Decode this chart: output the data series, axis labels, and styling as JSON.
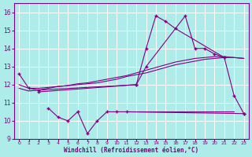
{
  "xlabel": "Windchill (Refroidissement éolien,°C)",
  "background_color": "#aeecea",
  "grid_color": "#ffffff",
  "line_color": "#800080",
  "xlim": [
    -0.5,
    23.5
  ],
  "ylim": [
    9.0,
    16.5
  ],
  "yticks": [
    9,
    10,
    11,
    12,
    13,
    14,
    15,
    16
  ],
  "xticks": [
    0,
    1,
    2,
    3,
    4,
    5,
    6,
    7,
    8,
    9,
    10,
    11,
    12,
    13,
    14,
    15,
    16,
    17,
    18,
    19,
    20,
    21,
    22,
    23
  ],
  "line1_x": [
    0,
    1,
    2,
    12,
    13,
    14,
    15,
    16,
    21
  ],
  "line1_y": [
    12.6,
    11.8,
    11.7,
    12.0,
    14.0,
    15.8,
    15.5,
    15.1,
    13.5
  ],
  "line2_x": [
    2,
    12,
    13,
    17,
    18,
    19,
    20,
    21,
    22,
    23
  ],
  "line2_y": [
    11.6,
    12.0,
    13.0,
    15.8,
    14.0,
    14.0,
    13.7,
    13.5,
    11.4,
    10.4
  ],
  "smooth1_x": [
    0,
    1,
    2,
    3,
    4,
    5,
    6,
    7,
    8,
    9,
    10,
    11,
    12,
    13,
    14,
    15,
    16,
    17,
    18,
    19,
    20,
    21,
    22,
    23
  ],
  "smooth1_y": [
    11.8,
    11.65,
    11.7,
    11.8,
    11.9,
    11.95,
    12.0,
    12.05,
    12.1,
    12.2,
    12.3,
    12.45,
    12.55,
    12.65,
    12.8,
    12.95,
    13.1,
    13.2,
    13.3,
    13.4,
    13.45,
    13.5,
    13.5,
    13.45
  ],
  "smooth2_x": [
    0,
    1,
    2,
    3,
    4,
    5,
    6,
    7,
    8,
    9,
    10,
    11,
    12,
    13,
    14,
    15,
    16,
    17,
    18,
    19,
    20,
    21,
    22,
    23
  ],
  "smooth2_y": [
    12.0,
    11.8,
    11.8,
    11.85,
    11.9,
    11.95,
    12.05,
    12.1,
    12.2,
    12.3,
    12.4,
    12.5,
    12.65,
    12.8,
    12.95,
    13.1,
    13.25,
    13.35,
    13.45,
    13.5,
    13.55,
    13.55,
    13.5,
    13.45
  ],
  "low_x": [
    3,
    4,
    5,
    6,
    7,
    8,
    9,
    10,
    11,
    23
  ],
  "low_y": [
    10.7,
    10.2,
    10.0,
    10.5,
    9.3,
    10.0,
    10.5,
    10.5,
    10.5,
    10.4
  ],
  "low2_x": [
    11,
    12,
    13,
    14,
    15,
    16,
    17,
    18,
    19,
    20,
    21,
    22
  ],
  "low2_y": [
    10.5,
    10.5,
    10.5,
    10.5,
    10.5,
    10.5,
    10.5,
    10.5,
    10.5,
    10.5,
    10.5,
    10.5
  ]
}
